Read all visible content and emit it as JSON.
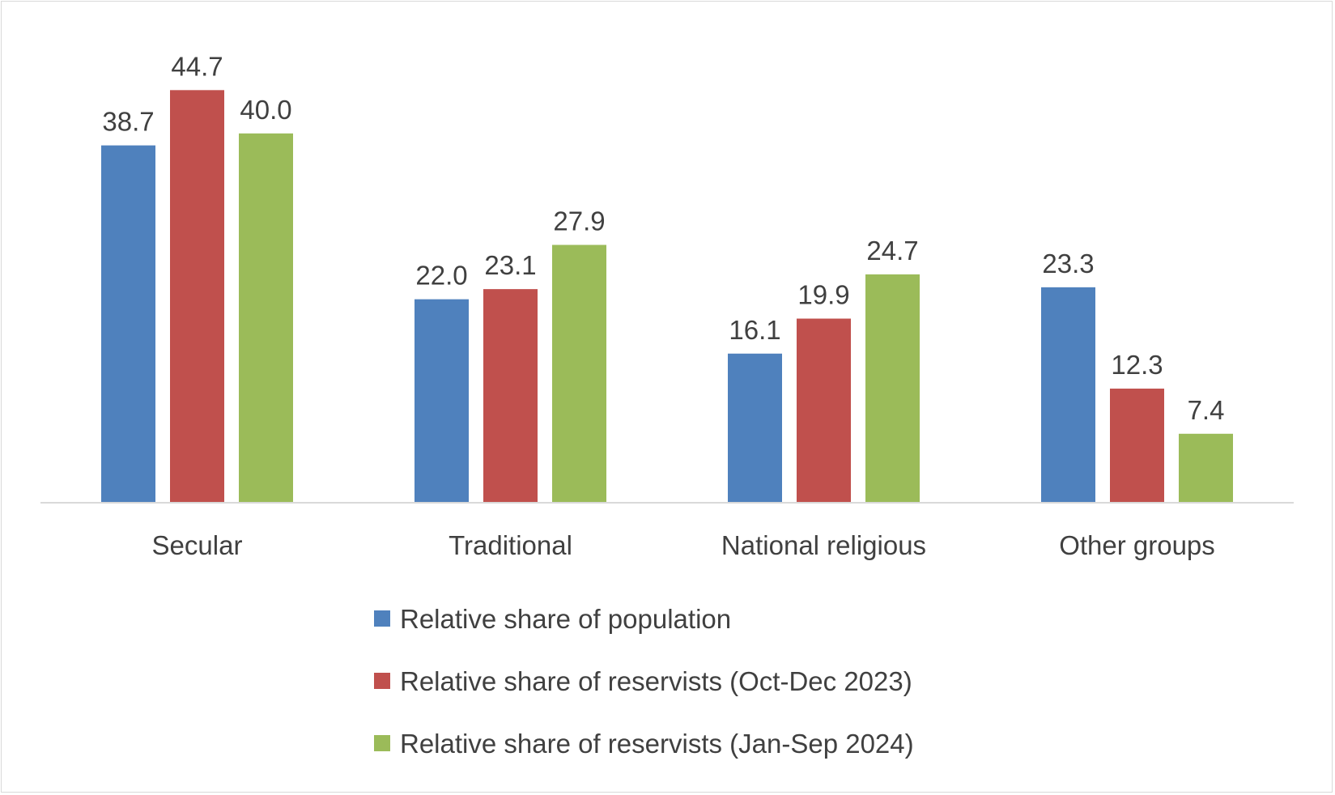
{
  "chart_data": {
    "type": "bar",
    "categories": [
      "Secular",
      "Traditional",
      "National religious",
      "Other groups"
    ],
    "series": [
      {
        "name": "Relative share of population",
        "values": [
          38.7,
          22.0,
          16.1,
          23.3
        ],
        "labels": [
          "38.7",
          "22.0",
          "16.1",
          "23.3"
        ],
        "color": "#4f81bd"
      },
      {
        "name": "Relative share of reservists (Oct-Dec 2023)",
        "values": [
          44.7,
          23.1,
          19.9,
          12.3
        ],
        "labels": [
          "44.7",
          "23.1",
          "19.9",
          "12.3"
        ],
        "color": "#c0504d"
      },
      {
        "name": "Relative share of reservists (Jan-Sep 2024)",
        "values": [
          40.0,
          27.9,
          24.7,
          7.4
        ],
        "labels": [
          "40.0",
          "27.9",
          "24.7",
          "7.4"
        ],
        "color": "#9bbb59"
      }
    ],
    "ylim": [
      0,
      50
    ],
    "grid": false,
    "legend_position": "bottom"
  }
}
